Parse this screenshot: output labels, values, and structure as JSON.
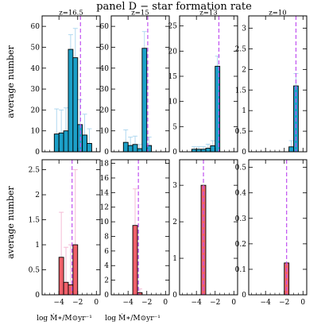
{
  "figure": {
    "title": "panel D − star formation rate",
    "ylabel": "average number",
    "xlabel": "log Ṁ∗/M⊙yr⁻¹",
    "xlim": [
      -5.8,
      0.4
    ],
    "xticks": [
      -4,
      -2,
      0
    ],
    "xtick_labels": [
      "−4",
      "−2",
      "0"
    ],
    "colors": {
      "top_bar": "#1ca0c8",
      "top_err": "#a8d4ee",
      "bottom_bar": "#f0606a",
      "bottom_err": "#f4b4d2",
      "median_line": "#c050f0"
    }
  },
  "chart_data": [
    {
      "type": "bar",
      "row": "top",
      "label": "z=16.5",
      "ylim": [
        0,
        65
      ],
      "yticks": [
        0,
        10,
        20,
        30,
        40,
        50,
        60
      ],
      "x": [
        -4.25,
        -3.75,
        -3.25,
        -2.75,
        -2.25,
        -1.75,
        -1.25,
        -0.75
      ],
      "values": [
        8.5,
        9,
        10,
        49,
        45,
        13,
        8,
        4
      ],
      "errors": [
        12,
        11,
        11,
        7,
        14,
        12,
        10,
        7
      ],
      "vline": -1.7
    },
    {
      "type": "bar",
      "row": "top",
      "label": "z=15",
      "ylim": [
        0,
        65
      ],
      "yticks": [
        0,
        10,
        20,
        30,
        40,
        50,
        60
      ],
      "x": [
        -4.25,
        -3.75,
        -3.25,
        -2.75,
        -2.25,
        -1.75
      ],
      "values": [
        4.5,
        3,
        3.5,
        1.5,
        49.5,
        3
      ],
      "errors": [
        6,
        4,
        4,
        2,
        8,
        4
      ],
      "vline": -1.9
    },
    {
      "type": "bar",
      "row": "top",
      "label": "z=13",
      "ylim": [
        0,
        27
      ],
      "yticks": [
        0,
        5,
        10,
        15,
        20,
        25
      ],
      "x": [
        -4.25,
        -3.75,
        -3.25,
        -2.75,
        -2.25,
        -1.75
      ],
      "values": [
        0.5,
        0.5,
        0.5,
        0.7,
        1.2,
        17
      ],
      "errors": [
        0.5,
        0.5,
        0.5,
        0.8,
        1,
        2
      ],
      "vline": -1.6
    },
    {
      "type": "bar",
      "row": "top",
      "label": "z=10",
      "ylim": [
        0,
        3.3
      ],
      "yticks": [
        0,
        0.5,
        1,
        1.5,
        2,
        2.5,
        3
      ],
      "x": [
        -1.25,
        -0.75
      ],
      "values": [
        0.12,
        1.6
      ],
      "errors": [
        0.15,
        0.3
      ],
      "vline": -0.75
    },
    {
      "type": "bar",
      "row": "bottom",
      "label": "",
      "ylim": [
        0,
        2.7
      ],
      "yticks": [
        0,
        0.5,
        1,
        1.5,
        2,
        2.5
      ],
      "x": [
        -3.75,
        -3.25,
        -2.75,
        -2.25
      ],
      "values": [
        0.75,
        0.25,
        0.2,
        1
      ],
      "errors": [
        0.9,
        0.7,
        0.8,
        1.5
      ],
      "vline": -2.6
    },
    {
      "type": "bar",
      "row": "bottom",
      "label": "",
      "ylim": [
        0,
        18.5
      ],
      "yticks": [
        0,
        2,
        4,
        6,
        8,
        10,
        12,
        14,
        16,
        18
      ],
      "x": [
        -3.25,
        -2.75
      ],
      "values": [
        9.5,
        0.3
      ],
      "errors": [
        5,
        0.5
      ],
      "vline": -2.9
    },
    {
      "type": "bar",
      "row": "bottom",
      "label": "",
      "ylim": [
        0,
        3.7
      ],
      "yticks": [
        0,
        1,
        2,
        3
      ],
      "x": [
        -3.25
      ],
      "values": [
        3
      ],
      "errors": [
        0
      ],
      "vline": -3.25
    },
    {
      "type": "bar",
      "row": "bottom",
      "label": "",
      "ylim": [
        0,
        0.53
      ],
      "yticks": [
        0,
        0.1,
        0.2,
        0.3,
        0.4,
        0.5
      ],
      "x": [
        -1.75
      ],
      "values": [
        0.125
      ],
      "errors": [
        0
      ],
      "vline": -1.75
    }
  ]
}
